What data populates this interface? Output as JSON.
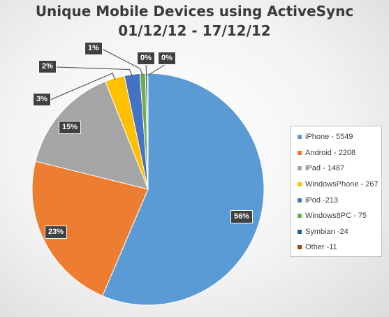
{
  "chart_data": {
    "type": "pie",
    "title_lines": [
      "Unique Mobile Devices using ActiveSync",
      "01/12/12 - 17/12/12"
    ],
    "slices": [
      {
        "legend": "iPhone - 5549",
        "value": 5549,
        "percent_label": "56%",
        "color": "#5b9bd5"
      },
      {
        "legend": "Android - 2208",
        "value": 2208,
        "percent_label": "23%",
        "color": "#ed7d31"
      },
      {
        "legend": "iPad - 1487",
        "value": 1487,
        "percent_label": "15%",
        "color": "#a5a5a5"
      },
      {
        "legend": "WindowsPhone - 267",
        "value": 267,
        "percent_label": "3%",
        "color": "#ffc000"
      },
      {
        "legend": "iPod -213",
        "value": 213,
        "percent_label": "2%",
        "color": "#4472c4"
      },
      {
        "legend": "Windows8PC - 75",
        "value": 75,
        "percent_label": "1%",
        "color": "#70ad47"
      },
      {
        "legend": "Symbian -24",
        "value": 24,
        "percent_label": "0%",
        "color": "#255e91"
      },
      {
        "legend": "Other -11",
        "value": 11,
        "percent_label": "0%",
        "color": "#9e480e"
      }
    ],
    "legend_position": "right"
  }
}
